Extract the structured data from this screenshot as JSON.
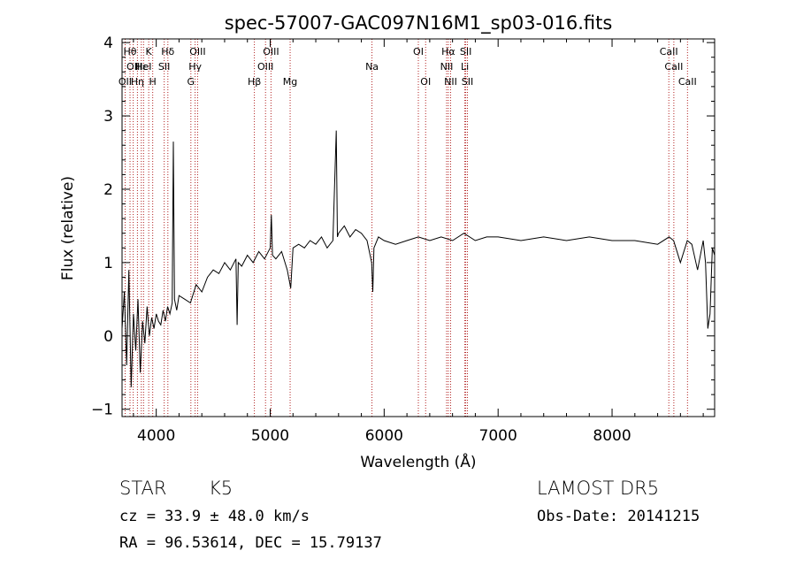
{
  "chart_data": {
    "type": "line",
    "title": "spec-57007-GAC097N16M1_sp03-016.fits",
    "xlabel": "Wavelength (Å)",
    "ylabel": "Flux (relative)",
    "xlim": [
      3700,
      8900
    ],
    "ylim": [
      -1.1,
      4.05
    ],
    "xticks": [
      4000,
      5000,
      6000,
      7000,
      8000
    ],
    "yticks": [
      -1,
      0,
      1,
      2,
      3,
      4
    ],
    "grid": false,
    "line_color": "#000000",
    "marker_color": "#b22222",
    "series": [
      {
        "x": [
          3700,
          3720,
          3740,
          3760,
          3780,
          3800,
          3820,
          3840,
          3860,
          3880,
          3900,
          3920,
          3940,
          3960,
          3980,
          4000,
          4020,
          4040,
          4060,
          4080,
          4100,
          4120,
          4140,
          4150,
          4160,
          4180,
          4200,
          4250,
          4300,
          4350,
          4400,
          4450,
          4500,
          4550,
          4600,
          4650,
          4700,
          4710,
          4720,
          4750,
          4800,
          4850,
          4900,
          4950,
          5000,
          5010,
          5020,
          5050,
          5100,
          5150,
          5180,
          5200,
          5250,
          5300,
          5350,
          5400,
          5450,
          5500,
          5550,
          5580,
          5590,
          5600,
          5650,
          5700,
          5750,
          5800,
          5850,
          5890,
          5900,
          5910,
          5950,
          6000,
          6100,
          6200,
          6300,
          6400,
          6500,
          6600,
          6700,
          6800,
          6900,
          7000,
          7200,
          7400,
          7600,
          7800,
          8000,
          8200,
          8400,
          8500,
          8540,
          8560,
          8600,
          8660,
          8700,
          8750,
          8800,
          8820,
          8840,
          8860,
          8880,
          8900
        ],
        "y": [
          0.1,
          0.6,
          -0.4,
          0.9,
          -0.7,
          0.3,
          -0.2,
          0.5,
          -0.5,
          0.2,
          -0.1,
          0.4,
          0.0,
          0.25,
          0.1,
          0.3,
          0.2,
          0.15,
          0.35,
          0.2,
          0.4,
          0.3,
          0.45,
          2.65,
          0.5,
          0.35,
          0.55,
          0.5,
          0.45,
          0.7,
          0.6,
          0.8,
          0.9,
          0.85,
          1.0,
          0.9,
          1.05,
          0.15,
          1.0,
          0.95,
          1.1,
          1.0,
          1.15,
          1.05,
          1.2,
          1.65,
          1.1,
          1.05,
          1.15,
          0.9,
          0.65,
          1.2,
          1.25,
          1.2,
          1.3,
          1.25,
          1.35,
          1.2,
          1.3,
          2.8,
          1.35,
          1.4,
          1.5,
          1.35,
          1.45,
          1.4,
          1.3,
          1.0,
          0.6,
          1.2,
          1.35,
          1.3,
          1.25,
          1.3,
          1.35,
          1.3,
          1.35,
          1.3,
          1.4,
          1.3,
          1.35,
          1.35,
          1.3,
          1.35,
          1.3,
          1.35,
          1.3,
          1.3,
          1.25,
          1.35,
          1.3,
          1.2,
          1.0,
          1.3,
          1.25,
          0.9,
          1.3,
          1.0,
          0.1,
          0.3,
          1.2,
          1.1
        ]
      }
    ],
    "lines": [
      {
        "x": 3727,
        "label": "OII",
        "row": 3
      },
      {
        "x": 3770,
        "label": "Hθ",
        "row": 1
      },
      {
        "x": 3798,
        "label": "OII",
        "row": 2
      },
      {
        "x": 3835,
        "label": "Hη",
        "row": 3
      },
      {
        "x": 3869,
        "label": "Hε",
        "row": 2
      },
      {
        "x": 3889,
        "label": "HeI",
        "row": 2
      },
      {
        "x": 3934,
        "label": "K",
        "row": 1
      },
      {
        "x": 3969,
        "label": "H",
        "row": 3
      },
      {
        "x": 4070,
        "label": "SII",
        "row": 2
      },
      {
        "x": 4102,
        "label": "Hδ",
        "row": 1
      },
      {
        "x": 4304,
        "label": "G",
        "row": 3
      },
      {
        "x": 4341,
        "label": "Hγ",
        "row": 2
      },
      {
        "x": 4363,
        "label": "OIII",
        "row": 1
      },
      {
        "x": 4861,
        "label": "Hβ",
        "row": 3
      },
      {
        "x": 4959,
        "label": "OIII",
        "row": 2
      },
      {
        "x": 5007,
        "label": "OIII",
        "row": 1
      },
      {
        "x": 5175,
        "label": "Mg",
        "row": 3
      },
      {
        "x": 5893,
        "label": "Na",
        "row": 2
      },
      {
        "x": 6300,
        "label": "OI",
        "row": 1
      },
      {
        "x": 6364,
        "label": "OI",
        "row": 3
      },
      {
        "x": 6548,
        "label": "NII",
        "row": 2
      },
      {
        "x": 6563,
        "label": "Hα",
        "row": 1
      },
      {
        "x": 6583,
        "label": "NII",
        "row": 3
      },
      {
        "x": 6708,
        "label": "Li",
        "row": 2
      },
      {
        "x": 6716,
        "label": "SII",
        "row": 1
      },
      {
        "x": 6731,
        "label": "SII",
        "row": 3
      },
      {
        "x": 8498,
        "label": "CaII",
        "row": 1
      },
      {
        "x": 8542,
        "label": "CaII",
        "row": 2
      },
      {
        "x": 8662,
        "label": "CaII",
        "row": 3
      }
    ]
  },
  "info": {
    "class": "STAR",
    "subclass": "K5",
    "survey": "LAMOST DR5",
    "cz": "cz = 33.9 ± 48.0 km/s",
    "obs_date": "Obs-Date: 20141215",
    "coords": "RA =  96.53614, DEC =  15.79137"
  }
}
